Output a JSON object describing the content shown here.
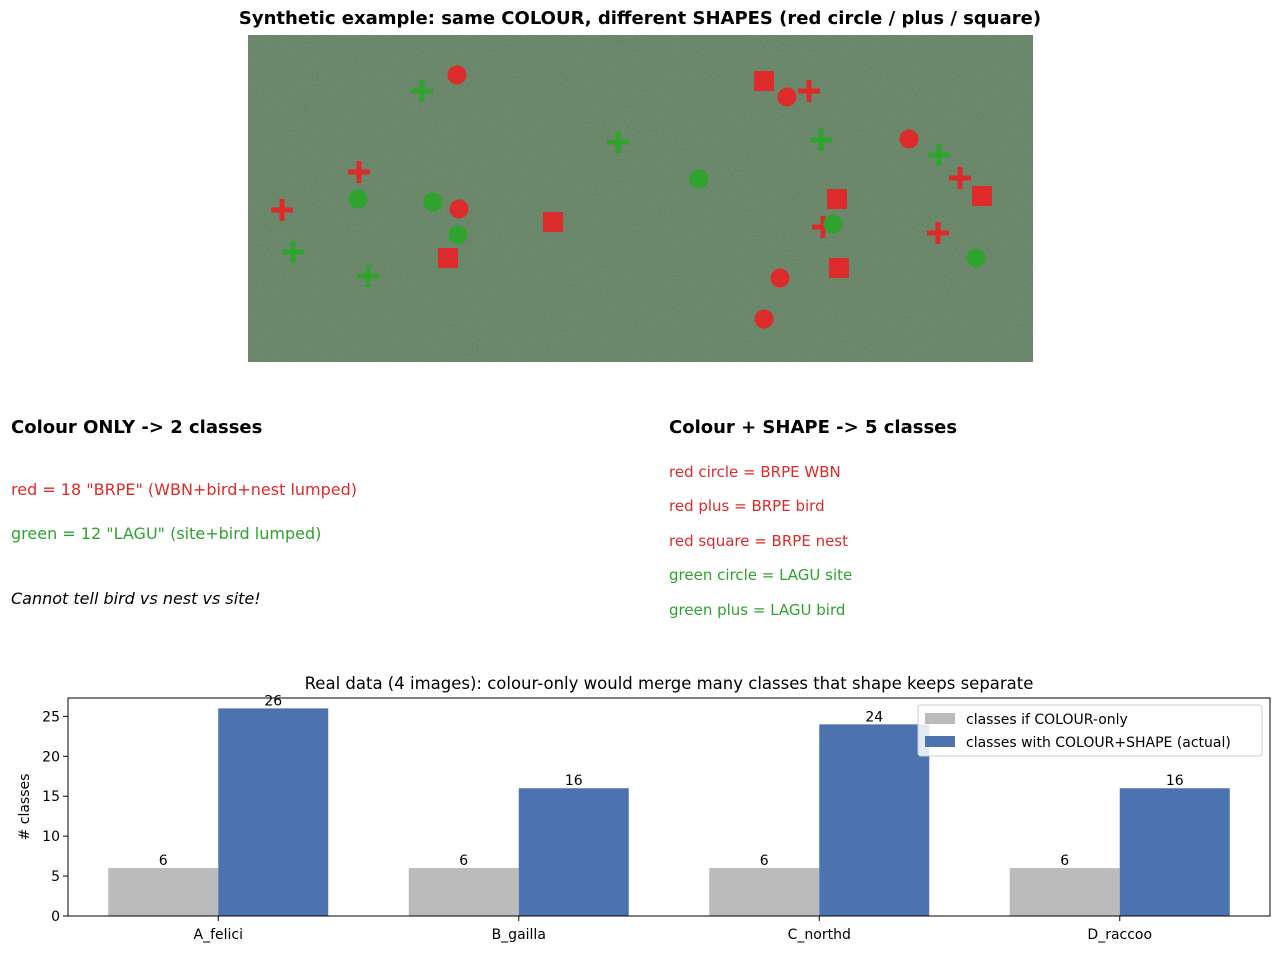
{
  "scene": {
    "title": "Synthetic example: same COLOUR, different SHAPES (red circle / plus / square)",
    "colors": {
      "red": "#dd2a2a",
      "green": "#2ea32e",
      "background": "#5b7d5b"
    },
    "markers": [
      {
        "shape": "plus",
        "color": "green"
      },
      {
        "shape": "circle",
        "color": "red"
      },
      {
        "shape": "square",
        "color": "red"
      },
      {
        "shape": "circle",
        "color": "red"
      },
      {
        "shape": "plus",
        "color": "red"
      },
      {
        "shape": "plus",
        "color": "green"
      },
      {
        "shape": "plus",
        "color": "green"
      },
      {
        "shape": "circle",
        "color": "red"
      },
      {
        "shape": "plus",
        "color": "green"
      },
      {
        "shape": "plus",
        "color": "red"
      },
      {
        "shape": "circle",
        "color": "green"
      },
      {
        "shape": "plus",
        "color": "red"
      },
      {
        "shape": "square",
        "color": "red"
      },
      {
        "shape": "square",
        "color": "red"
      },
      {
        "shape": "plus",
        "color": "red"
      },
      {
        "shape": "circle",
        "color": "green"
      },
      {
        "shape": "circle",
        "color": "green"
      },
      {
        "shape": "circle",
        "color": "red"
      },
      {
        "shape": "square",
        "color": "red"
      },
      {
        "shape": "plus",
        "color": "red"
      },
      {
        "shape": "circle",
        "color": "green"
      },
      {
        "shape": "circle",
        "color": "green"
      },
      {
        "shape": "plus",
        "color": "red"
      },
      {
        "shape": "plus",
        "color": "green"
      },
      {
        "shape": "square",
        "color": "red"
      },
      {
        "shape": "plus",
        "color": "green"
      },
      {
        "shape": "circle",
        "color": "green"
      },
      {
        "shape": "square",
        "color": "red"
      },
      {
        "shape": "circle",
        "color": "red"
      },
      {
        "shape": "circle",
        "color": "red"
      }
    ]
  },
  "left_panel": {
    "heading": "Colour ONLY  ->  2 classes",
    "red_line": "red = 18  \"BRPE\"   (WBN+bird+nest lumped)",
    "green_line": "green = 12  \"LAGU\"  (site+bird lumped)",
    "note": "Cannot tell bird vs nest vs site!"
  },
  "right_panel": {
    "heading": "Colour + SHAPE  ->  5 classes",
    "items": [
      {
        "text": "red circle = BRPE WBN",
        "color": "red"
      },
      {
        "text": "red plus = BRPE bird",
        "color": "red"
      },
      {
        "text": "red square = BRPE nest",
        "color": "red"
      },
      {
        "text": "green circle = LAGU site",
        "color": "green"
      },
      {
        "text": "green plus = LAGU bird",
        "color": "green"
      }
    ]
  },
  "chart_data": {
    "type": "bar",
    "title": "Real data (4 images): colour-only would merge many classes that shape keeps separate",
    "ylabel": "# classes",
    "xlabel": "",
    "categories": [
      "A_felici",
      "B_gailla",
      "C_northd",
      "D_raccoo"
    ],
    "series": [
      {
        "name": "classes if COLOUR-only",
        "values": [
          6,
          6,
          6,
          6
        ],
        "color": "#bbbbbb"
      },
      {
        "name": "classes with COLOUR+SHAPE (actual)",
        "values": [
          26,
          16,
          24,
          16
        ],
        "color": "#4c72b0"
      }
    ],
    "ylim": [
      0,
      27.3
    ],
    "yticks": [
      0,
      5,
      10,
      15,
      20,
      25
    ],
    "grid": false,
    "legend": "upper-right",
    "data_labels": true
  }
}
